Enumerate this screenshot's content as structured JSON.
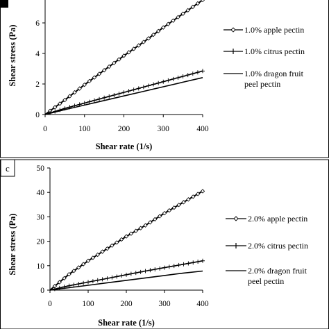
{
  "chart_data": [
    {
      "type": "line",
      "panel_label": "",
      "xlabel": "Shear rate (1/s)",
      "ylabel": "Shear stress (Pa)",
      "xlim": [
        0,
        400
      ],
      "ylim": [
        0,
        7.5
      ],
      "x_ticks": [
        0,
        100,
        200,
        300,
        400
      ],
      "y_ticks": [
        0,
        2,
        4,
        6
      ],
      "x_tick_labels": [
        "0",
        "100",
        "200",
        "300",
        "400"
      ],
      "y_tick_labels": [
        "0",
        "2",
        "4",
        "6"
      ],
      "grid": false,
      "legend_position": "right",
      "x": [
        0,
        50,
        100,
        150,
        200,
        250,
        300,
        350,
        400
      ],
      "series": [
        {
          "name": "1.0% apple pectin",
          "marker": "diamond",
          "values": [
            0,
            0.95,
            1.95,
            2.9,
            3.85,
            4.75,
            5.7,
            6.6,
            7.5
          ]
        },
        {
          "name": "1.0% citrus pectin",
          "marker": "plus",
          "values": [
            0,
            0.4,
            0.75,
            1.1,
            1.45,
            1.8,
            2.15,
            2.5,
            2.85
          ]
        },
        {
          "name": "1.0% dragon fruit peel pectin",
          "marker": "dash",
          "values": [
            0,
            0.32,
            0.62,
            0.92,
            1.22,
            1.52,
            1.82,
            2.12,
            2.42
          ]
        }
      ]
    },
    {
      "type": "line",
      "panel_label": "c",
      "xlabel": "Shear rate (1/s)",
      "ylabel": "Shear stress (Pa)",
      "xlim": [
        0,
        400
      ],
      "ylim": [
        0,
        50
      ],
      "x_ticks": [
        0,
        100,
        200,
        300,
        400
      ],
      "y_ticks": [
        0,
        10,
        20,
        30,
        40,
        50
      ],
      "x_tick_labels": [
        "0",
        "100",
        "200",
        "300",
        "400"
      ],
      "y_tick_labels": [
        "0",
        "10",
        "20",
        "30",
        "40",
        "50"
      ],
      "grid": false,
      "legend_position": "right",
      "x": [
        0,
        50,
        100,
        150,
        200,
        250,
        300,
        350,
        400
      ],
      "series": [
        {
          "name": "2.0% apple pectin",
          "marker": "diamond",
          "values": [
            0,
            6.5,
            12,
            17,
            22,
            26.5,
            31.5,
            36,
            40.5
          ]
        },
        {
          "name": "2.0% citrus pectin",
          "marker": "plus",
          "values": [
            0,
            1.8,
            3.3,
            4.8,
            6.3,
            7.8,
            9.2,
            10.6,
            12
          ]
        },
        {
          "name": "2.0% dragon fruit peel pectin",
          "marker": "dash",
          "values": [
            0,
            1.0,
            2.0,
            3.0,
            4.0,
            5.0,
            6.0,
            7.0,
            7.8
          ]
        }
      ]
    }
  ],
  "legend_lines": [
    [
      "1.0% apple pectin"
    ],
    [
      "1.0% citrus pectin"
    ],
    [
      "1.0% dragon fruit",
      "peel pectin"
    ],
    [
      "2.0% apple pectin"
    ],
    [
      "2.0% citrus pectin"
    ],
    [
      "2.0% dragon fruit",
      "peel pectin"
    ]
  ]
}
